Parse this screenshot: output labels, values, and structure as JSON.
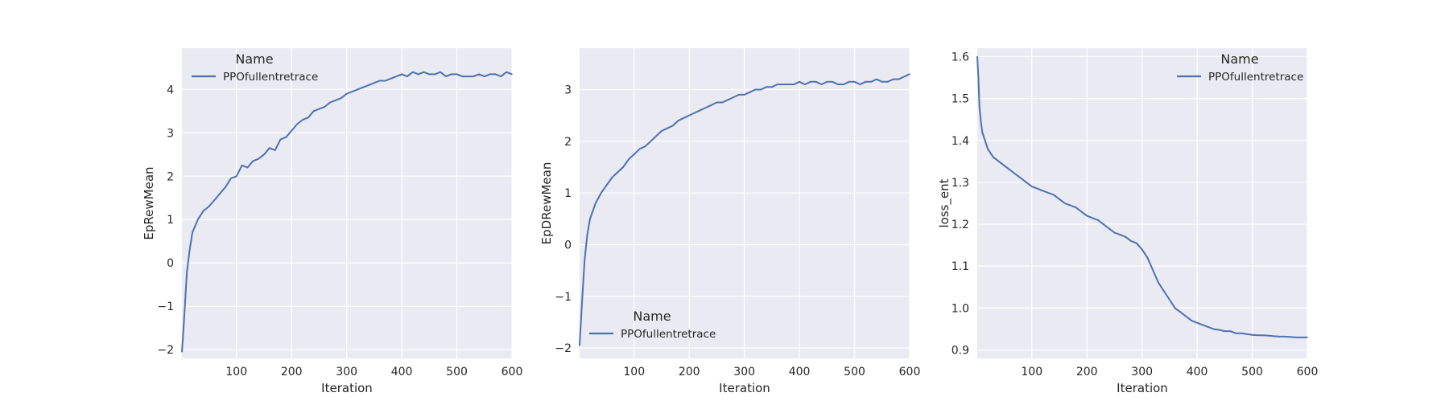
{
  "chart_data": [
    {
      "type": "line",
      "xlabel": "Iteration",
      "ylabel": "EpRewMean",
      "xlim": [
        1,
        600
      ],
      "ylim": [
        -2.2,
        4.95
      ],
      "xticks": [
        100,
        200,
        300,
        400,
        500,
        600
      ],
      "yticks": [
        -2,
        -1,
        0,
        1,
        2,
        3,
        4
      ],
      "ytick_labels": [
        "−2",
        "−1",
        "0",
        "1",
        "2",
        "3",
        "4"
      ],
      "grid": true,
      "legend": {
        "title": "Name",
        "placement": "upper-left"
      },
      "series": [
        {
          "name": "PPOfullentretrace",
          "color": "#4c72b0",
          "x": [
            1,
            5,
            10,
            15,
            20,
            30,
            40,
            50,
            60,
            70,
            80,
            90,
            100,
            110,
            120,
            130,
            140,
            150,
            160,
            170,
            180,
            190,
            200,
            210,
            220,
            230,
            240,
            250,
            260,
            270,
            280,
            290,
            300,
            310,
            320,
            330,
            340,
            350,
            360,
            370,
            380,
            390,
            400,
            410,
            420,
            430,
            440,
            450,
            460,
            470,
            480,
            490,
            500,
            510,
            520,
            530,
            540,
            550,
            560,
            570,
            580,
            590,
            600
          ],
          "values": [
            -2.05,
            -1.3,
            -0.2,
            0.3,
            0.7,
            1.0,
            1.2,
            1.3,
            1.45,
            1.6,
            1.75,
            1.95,
            2.0,
            2.25,
            2.2,
            2.35,
            2.4,
            2.5,
            2.65,
            2.6,
            2.85,
            2.9,
            3.05,
            3.2,
            3.3,
            3.35,
            3.5,
            3.55,
            3.6,
            3.7,
            3.75,
            3.8,
            3.9,
            3.95,
            4.0,
            4.05,
            4.1,
            4.15,
            4.2,
            4.2,
            4.25,
            4.3,
            4.35,
            4.3,
            4.4,
            4.35,
            4.4,
            4.35,
            4.35,
            4.4,
            4.3,
            4.35,
            4.35,
            4.3,
            4.3,
            4.3,
            4.35,
            4.3,
            4.35,
            4.35,
            4.3,
            4.4,
            4.35
          ]
        }
      ]
    },
    {
      "type": "line",
      "xlabel": "Iteration",
      "ylabel": "EpDRewMean",
      "xlim": [
        1,
        600
      ],
      "ylim": [
        -2.2,
        3.8
      ],
      "xticks": [
        100,
        200,
        300,
        400,
        500,
        600
      ],
      "yticks": [
        -2,
        -1,
        0,
        1,
        2,
        3
      ],
      "ytick_labels": [
        "−2",
        "−1",
        "0",
        "1",
        "2",
        "3"
      ],
      "grid": true,
      "legend": {
        "title": "Name",
        "placement": "lower-left"
      },
      "series": [
        {
          "name": "PPOfullentretrace",
          "color": "#4c72b0",
          "x": [
            1,
            5,
            10,
            15,
            20,
            30,
            40,
            50,
            60,
            70,
            80,
            90,
            100,
            110,
            120,
            130,
            140,
            150,
            160,
            170,
            180,
            190,
            200,
            210,
            220,
            230,
            240,
            250,
            260,
            270,
            280,
            290,
            300,
            310,
            320,
            330,
            340,
            350,
            360,
            370,
            380,
            390,
            400,
            410,
            420,
            430,
            440,
            450,
            460,
            470,
            480,
            490,
            500,
            510,
            520,
            530,
            540,
            550,
            560,
            570,
            580,
            590,
            600
          ],
          "values": [
            -1.95,
            -1.2,
            -0.3,
            0.2,
            0.5,
            0.8,
            1.0,
            1.15,
            1.3,
            1.4,
            1.5,
            1.65,
            1.75,
            1.85,
            1.9,
            2.0,
            2.1,
            2.2,
            2.25,
            2.3,
            2.4,
            2.45,
            2.5,
            2.55,
            2.6,
            2.65,
            2.7,
            2.75,
            2.75,
            2.8,
            2.85,
            2.9,
            2.9,
            2.95,
            3.0,
            3.0,
            3.05,
            3.05,
            3.1,
            3.1,
            3.1,
            3.1,
            3.15,
            3.1,
            3.15,
            3.15,
            3.1,
            3.15,
            3.15,
            3.1,
            3.1,
            3.15,
            3.15,
            3.1,
            3.15,
            3.15,
            3.2,
            3.15,
            3.15,
            3.2,
            3.2,
            3.25,
            3.3
          ]
        }
      ]
    },
    {
      "type": "line",
      "xlabel": "Iteration",
      "ylabel": "loss_ent",
      "xlim": [
        1,
        600
      ],
      "ylim": [
        0.88,
        1.62
      ],
      "xticks": [
        100,
        200,
        300,
        400,
        500,
        600
      ],
      "yticks": [
        0.9,
        1.0,
        1.1,
        1.2,
        1.3,
        1.4,
        1.5,
        1.6
      ],
      "ytick_labels": [
        "0.9",
        "1.0",
        "1.1",
        "1.2",
        "1.3",
        "1.4",
        "1.5",
        "1.6"
      ],
      "grid": true,
      "legend": {
        "title": "Name",
        "placement": "upper-right"
      },
      "series": [
        {
          "name": "PPOfullentretrace",
          "color": "#4c72b0",
          "x": [
            1,
            3,
            5,
            8,
            10,
            15,
            20,
            30,
            40,
            50,
            60,
            70,
            80,
            90,
            100,
            110,
            120,
            130,
            140,
            150,
            160,
            170,
            180,
            190,
            200,
            210,
            220,
            230,
            240,
            250,
            260,
            270,
            280,
            290,
            300,
            310,
            320,
            330,
            340,
            350,
            360,
            370,
            380,
            390,
            400,
            410,
            420,
            430,
            440,
            450,
            460,
            470,
            480,
            490,
            500,
            510,
            520,
            530,
            540,
            550,
            560,
            570,
            580,
            590,
            600
          ],
          "values": [
            1.6,
            1.55,
            1.48,
            1.44,
            1.42,
            1.4,
            1.38,
            1.36,
            1.35,
            1.34,
            1.33,
            1.32,
            1.31,
            1.3,
            1.29,
            1.285,
            1.28,
            1.275,
            1.27,
            1.26,
            1.25,
            1.245,
            1.24,
            1.23,
            1.22,
            1.215,
            1.21,
            1.2,
            1.19,
            1.18,
            1.175,
            1.17,
            1.16,
            1.155,
            1.14,
            1.12,
            1.09,
            1.06,
            1.04,
            1.02,
            1.0,
            0.99,
            0.98,
            0.97,
            0.965,
            0.96,
            0.955,
            0.95,
            0.948,
            0.945,
            0.945,
            0.94,
            0.94,
            0.938,
            0.936,
            0.935,
            0.935,
            0.934,
            0.933,
            0.932,
            0.932,
            0.931,
            0.93,
            0.93,
            0.93
          ]
        }
      ]
    }
  ]
}
